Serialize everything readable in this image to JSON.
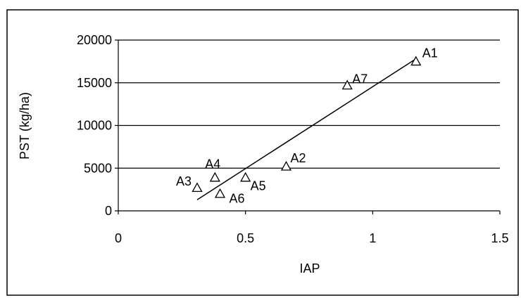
{
  "header_text": "",
  "chart_data": {
    "type": "scatter",
    "title": "",
    "xlabel": "IAP",
    "ylabel": "PST (kg/ha)",
    "xlim": [
      0,
      1.5
    ],
    "ylim": [
      0,
      20000
    ],
    "x_ticks": [
      0,
      0.5,
      1,
      1.5
    ],
    "y_ticks": [
      0,
      5000,
      10000,
      15000,
      20000
    ],
    "x_tick_labels": [
      "0",
      "0.5",
      "1",
      "1.5"
    ],
    "y_tick_labels": [
      "0",
      "5000",
      "10000",
      "15000",
      "20000"
    ],
    "grid": "horizontal",
    "legend": "none",
    "marker": "open-triangle",
    "points": [
      {
        "label": "A1",
        "x": 1.17,
        "y": 17500
      },
      {
        "label": "A2",
        "x": 0.66,
        "y": 5200
      },
      {
        "label": "A3",
        "x": 0.31,
        "y": 2700
      },
      {
        "label": "A4",
        "x": 0.38,
        "y": 3900
      },
      {
        "label": "A5",
        "x": 0.5,
        "y": 3900
      },
      {
        "label": "A6",
        "x": 0.4,
        "y": 2000
      },
      {
        "label": "A7",
        "x": 0.9,
        "y": 14700
      }
    ],
    "trendline": {
      "type": "linear",
      "x": [
        0.31,
        1.17
      ],
      "y": [
        1300,
        17800
      ]
    }
  }
}
